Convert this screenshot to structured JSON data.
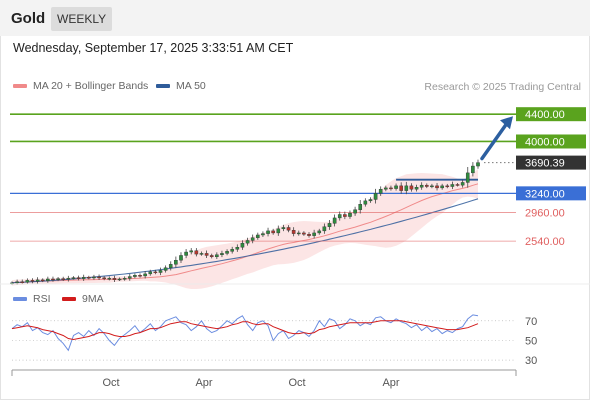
{
  "header": {
    "instrument": "Gold",
    "timeframe_tab": "WEEKLY",
    "datetime": "Wednesday, September 17, 2025 3:33:51 AM CET"
  },
  "legend": {
    "bollinger": "MA 20 + Bollinger Bands",
    "ma50": "MA 50",
    "rsi": "RSI",
    "rsi_ma": "9MA"
  },
  "credit": "Research © 2025 Trading Central",
  "colors": {
    "bollinger": "#f08a8a",
    "ma50": "#2f5c9a",
    "green": "#5aa31e",
    "blue": "#3a6fd6",
    "red": "#e06060",
    "dark": "#333333",
    "rsi": "#6b8de0",
    "rsi_ma": "#d21c1c",
    "arrow": "#2c5fa0"
  },
  "chart_data": [
    {
      "type": "candlestick",
      "price_scale": [
        2190,
        4520
      ],
      "levels": [
        {
          "value": 4400,
          "label": "4400.00",
          "style": "green-filled"
        },
        {
          "value": 4000,
          "label": "4000.00",
          "style": "green-filled"
        },
        {
          "value": 3690.39,
          "label": "3690.39",
          "style": "dark-current"
        },
        {
          "value": 3240,
          "label": "3240.00",
          "style": "blue-filled"
        },
        {
          "value": 2960,
          "label": "2960.00",
          "style": "red-text"
        },
        {
          "value": 2540,
          "label": "2540.00",
          "style": "red-text"
        }
      ],
      "x_labels": [
        "Oct",
        "Apr",
        "Oct",
        "Apr"
      ],
      "close_path": [
        1928,
        1945,
        1938,
        1965,
        1950,
        1972,
        1960,
        1985,
        1975,
        1990,
        1980,
        1995,
        2005,
        1990,
        2010,
        2000,
        2015,
        2002,
        1988,
        1995,
        1975,
        1985,
        1995,
        2020,
        2040,
        2030,
        2060,
        2090,
        2080,
        2110,
        2150,
        2200,
        2260,
        2330,
        2380,
        2400,
        2350,
        2360,
        2330,
        2310,
        2340,
        2360,
        2390,
        2420,
        2450,
        2510,
        2550,
        2590,
        2630,
        2650,
        2690,
        2660,
        2720,
        2740,
        2700,
        2650,
        2660,
        2640,
        2620,
        2660,
        2690,
        2750,
        2800,
        2880,
        2930,
        2900,
        2950,
        3000,
        3080,
        3130,
        3150,
        3240,
        3300,
        3320,
        3310,
        3350,
        3280,
        3350,
        3300,
        3330,
        3360,
        3340,
        3350,
        3320,
        3350,
        3340,
        3370,
        3360,
        3400,
        3540,
        3640,
        3690.39
      ],
      "ma50_start": 1930,
      "ma50_end": 3160,
      "resistance_line": {
        "value": 3440,
        "from_week": 75,
        "to_week": 91
      },
      "projection_arrow": {
        "from": 3750,
        "to": 4400
      }
    },
    {
      "type": "line",
      "name": "RSI",
      "ylim": [
        20,
        85
      ],
      "ticks": [
        70,
        50,
        30
      ],
      "rsi": [
        62,
        66,
        64,
        68,
        60,
        63,
        58,
        56,
        60,
        52,
        47,
        40,
        55,
        58,
        54,
        60,
        55,
        62,
        57,
        50,
        45,
        52,
        56,
        60,
        65,
        58,
        62,
        67,
        60,
        64,
        70,
        72,
        74,
        68,
        66,
        60,
        64,
        70,
        62,
        58,
        60,
        65,
        70,
        67,
        72,
        75,
        66,
        60,
        68,
        70,
        65,
        50,
        57,
        60,
        52,
        55,
        60,
        58,
        54,
        60,
        70,
        64,
        72,
        70,
        62,
        66,
        72,
        70,
        65,
        68,
        66,
        73,
        74,
        70,
        68,
        72,
        69,
        67,
        63,
        66,
        60,
        64,
        59,
        62,
        57,
        60,
        58,
        62,
        64,
        72,
        76,
        75
      ],
      "rsi_ma": [
        62,
        63,
        64,
        65,
        64,
        63,
        61,
        60,
        59,
        57,
        55,
        52,
        51,
        52,
        53,
        54,
        56,
        58,
        58,
        57,
        55,
        54,
        54,
        55,
        57,
        58,
        60,
        62,
        62,
        63,
        65,
        67,
        68,
        69,
        69,
        67,
        66,
        65,
        64,
        63,
        62,
        63,
        64,
        66,
        67,
        69,
        69,
        67,
        66,
        67,
        67,
        64,
        62,
        60,
        58,
        57,
        57,
        58,
        57,
        58,
        61,
        62,
        64,
        65,
        66,
        67,
        68,
        68,
        68,
        68,
        68,
        69,
        70,
        70,
        70,
        70,
        70,
        69,
        68,
        67,
        66,
        65,
        64,
        63,
        62,
        61,
        61,
        61,
        62,
        63,
        65,
        67
      ]
    }
  ]
}
